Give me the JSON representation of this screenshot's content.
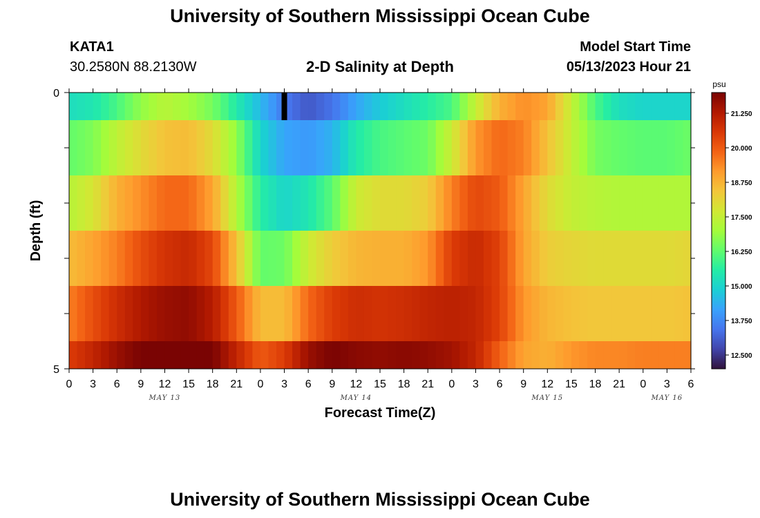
{
  "header": {
    "title": "University of Southern Mississippi Ocean Cube",
    "station": "KATA1",
    "coords": "30.2580N  88.2130W",
    "subtitle": "2-D Salinity at Depth",
    "model_start_label": "Model Start Time",
    "model_start_value": "05/13/2023 Hour 21"
  },
  "footer": {
    "title": "University of Southern Mississippi Ocean Cube"
  },
  "chart_data": {
    "type": "heatmap",
    "title": "2-D Salinity at Depth",
    "xlabel": "Forecast Time(Z)",
    "ylabel": "Depth (ft)",
    "ylim": [
      0,
      5
    ],
    "y_ticks": [
      "0",
      "5"
    ],
    "x_range_hours": [
      0,
      78
    ],
    "x_tick_labels": [
      "0",
      "3",
      "6",
      "9",
      "12",
      "15",
      "18",
      "21",
      "0",
      "3",
      "6",
      "9",
      "12",
      "15",
      "18",
      "21",
      "0",
      "3",
      "6",
      "9",
      "12",
      "15",
      "18",
      "21",
      "0",
      "3",
      "6"
    ],
    "day_labels": [
      {
        "text": "MAY 13",
        "hour": 12
      },
      {
        "text": "MAY 14",
        "hour": 36
      },
      {
        "text": "MAY 15",
        "hour": 60
      },
      {
        "text": "MAY 16",
        "hour": 75
      }
    ],
    "colorbar": {
      "unit": "psu",
      "min": 12.0,
      "max": 22.0,
      "tick_values": [
        12.5,
        13.75,
        15.0,
        16.25,
        17.5,
        18.75,
        20.0,
        21.25
      ],
      "tick_labels": [
        "12.500",
        "13.750",
        "15.000",
        "16.250",
        "17.500",
        "18.750",
        "20.000",
        "21.250"
      ],
      "colors": [
        "#30123b",
        "#4145ab",
        "#4675ed",
        "#39a2fc",
        "#1bcfd4",
        "#24eca6",
        "#61fc6c",
        "#a4fc3b",
        "#d1e834",
        "#f3c63a",
        "#fe9b2d",
        "#f36315",
        "#d93806",
        "#b11901",
        "#7a0403"
      ]
    },
    "layers": [
      {
        "depth_range": [
          0.0,
          0.5
        ],
        "hours": [
          0,
          3,
          6,
          9,
          12,
          15,
          18,
          21,
          24,
          27,
          30,
          33,
          36,
          39,
          42,
          45,
          48,
          51,
          54,
          57,
          60,
          63,
          66,
          69,
          72,
          75,
          78
        ],
        "values": [
          15.2,
          15.4,
          16.0,
          16.8,
          17.3,
          17.0,
          16.5,
          15.5,
          14.5,
          13.5,
          13.0,
          13.4,
          14.2,
          14.8,
          15.2,
          15.6,
          16.0,
          17.5,
          18.8,
          19.3,
          19.0,
          17.5,
          16.0,
          15.2,
          15.0,
          15.0,
          15.0
        ]
      },
      {
        "depth_range": [
          0.5,
          1.5
        ],
        "hours": [
          0,
          3,
          6,
          9,
          12,
          15,
          18,
          21,
          24,
          27,
          30,
          33,
          36,
          39,
          42,
          45,
          48,
          51,
          54,
          57,
          60,
          63,
          66,
          69,
          72,
          75,
          78
        ],
        "values": [
          16.3,
          16.6,
          17.4,
          18.0,
          18.5,
          18.6,
          18.0,
          16.8,
          15.0,
          14.2,
          14.0,
          14.4,
          15.5,
          16.0,
          16.2,
          16.4,
          17.6,
          19.2,
          19.8,
          19.5,
          18.5,
          17.5,
          16.5,
          16.3,
          16.2,
          16.2,
          16.4
        ]
      },
      {
        "depth_range": [
          1.5,
          2.5
        ],
        "hours": [
          0,
          3,
          6,
          9,
          12,
          15,
          18,
          21,
          24,
          27,
          30,
          33,
          36,
          39,
          42,
          45,
          48,
          51,
          54,
          57,
          60,
          63,
          66,
          69,
          72,
          75,
          78
        ],
        "values": [
          17.3,
          17.8,
          18.8,
          19.3,
          19.8,
          19.8,
          19.0,
          17.2,
          15.6,
          15.0,
          15.4,
          16.2,
          17.6,
          18.0,
          18.0,
          18.3,
          19.5,
          20.3,
          20.0,
          19.0,
          18.0,
          17.5,
          17.3,
          17.2,
          17.2,
          17.2,
          17.2
        ]
      },
      {
        "depth_range": [
          2.5,
          3.5
        ],
        "hours": [
          0,
          3,
          6,
          9,
          12,
          15,
          18,
          21,
          24,
          27,
          30,
          33,
          36,
          39,
          42,
          45,
          48,
          51,
          54,
          57,
          60,
          63,
          66,
          69,
          72,
          75,
          78
        ],
        "values": [
          18.6,
          19.0,
          19.5,
          20.2,
          20.7,
          20.9,
          20.3,
          18.5,
          16.3,
          16.4,
          17.6,
          18.3,
          18.7,
          18.8,
          18.8,
          19.2,
          20.5,
          20.9,
          20.4,
          19.0,
          18.3,
          18.1,
          18.0,
          18.0,
          18.0,
          18.0,
          18.1
        ]
      },
      {
        "depth_range": [
          3.5,
          4.5
        ],
        "hours": [
          0,
          3,
          6,
          9,
          12,
          15,
          18,
          21,
          24,
          27,
          30,
          33,
          36,
          39,
          42,
          45,
          48,
          51,
          54,
          57,
          60,
          63,
          66,
          69,
          72,
          75,
          78
        ],
        "values": [
          19.5,
          20.2,
          20.8,
          21.3,
          21.6,
          21.7,
          21.2,
          20.0,
          18.6,
          18.6,
          19.8,
          20.5,
          20.8,
          20.7,
          20.8,
          21.0,
          21.1,
          21.0,
          20.4,
          19.2,
          18.7,
          18.5,
          18.4,
          18.4,
          18.4,
          18.4,
          18.5
        ]
      },
      {
        "depth_range": [
          4.5,
          5.0
        ],
        "hours": [
          0,
          3,
          6,
          9,
          12,
          15,
          18,
          21,
          24,
          27,
          30,
          33,
          36,
          39,
          42,
          45,
          48,
          51,
          54,
          57,
          60,
          63,
          66,
          69,
          72,
          75,
          78
        ],
        "values": [
          20.5,
          21.0,
          21.6,
          22.0,
          22.3,
          22.4,
          22.0,
          21.0,
          20.0,
          20.5,
          21.6,
          22.0,
          21.8,
          21.7,
          21.8,
          21.7,
          21.5,
          21.0,
          19.9,
          19.0,
          18.8,
          19.2,
          19.4,
          19.4,
          19.5,
          19.5,
          19.5
        ]
      }
    ],
    "marker": {
      "hour": 27,
      "depth_range": [
        0.0,
        0.5
      ],
      "color": "#000000"
    }
  }
}
